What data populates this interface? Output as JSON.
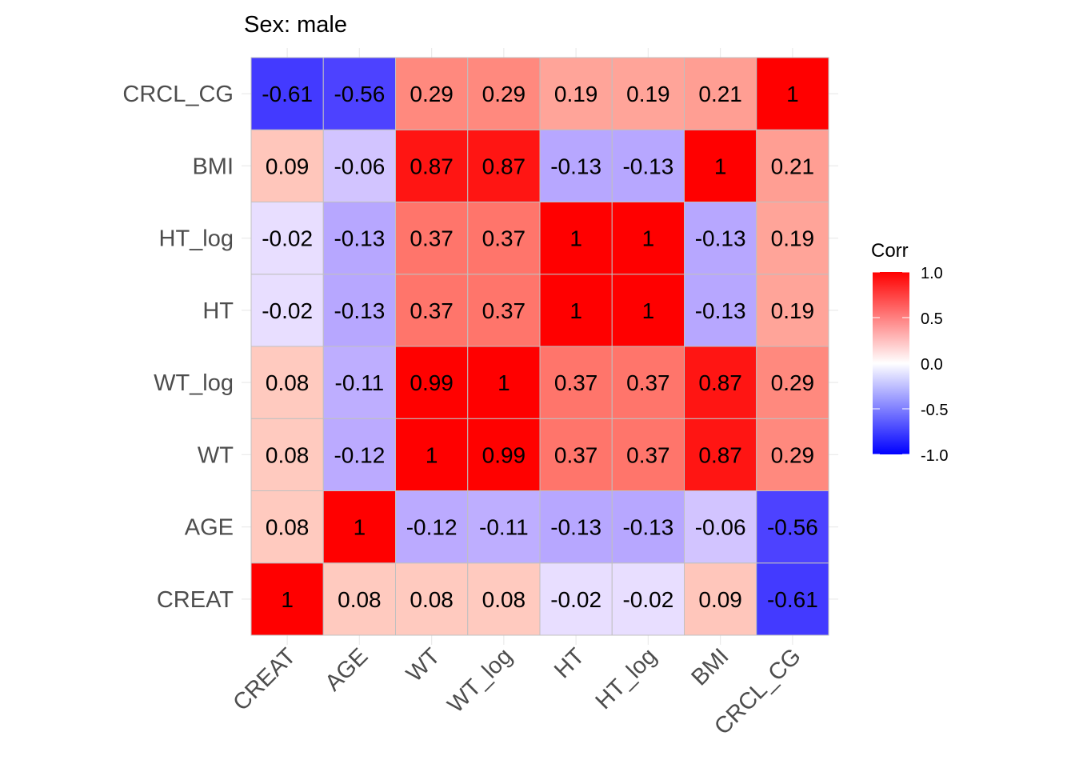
{
  "chart_data": {
    "type": "heatmap",
    "title": "Sex: male",
    "xlabel": "",
    "ylabel": "",
    "variables": [
      "CREAT",
      "AGE",
      "WT",
      "WT_log",
      "HT",
      "HT_log",
      "BMI",
      "CRCL_CG"
    ],
    "x_tick_labels": [
      "CREAT",
      "AGE",
      "WT",
      "WT_log",
      "HT",
      "HT_log",
      "BMI",
      "CRCL_CG"
    ],
    "y_tick_labels_bottom_to_top": [
      "CREAT",
      "AGE",
      "WT",
      "WT_log",
      "HT",
      "HT_log",
      "BMI",
      "CRCL_CG"
    ],
    "matrix": [
      [
        1,
        0.08,
        0.08,
        0.08,
        -0.02,
        -0.02,
        0.09,
        -0.61
      ],
      [
        0.08,
        1,
        -0.12,
        -0.11,
        -0.13,
        -0.13,
        -0.06,
        -0.56
      ],
      [
        0.08,
        -0.12,
        1,
        0.99,
        0.37,
        0.37,
        0.87,
        0.29
      ],
      [
        0.08,
        -0.11,
        0.99,
        1,
        0.37,
        0.37,
        0.87,
        0.29
      ],
      [
        -0.02,
        -0.13,
        0.37,
        0.37,
        1,
        1,
        -0.13,
        0.19
      ],
      [
        -0.02,
        -0.13,
        0.37,
        0.37,
        1,
        1,
        -0.13,
        0.19
      ],
      [
        0.09,
        -0.06,
        0.87,
        0.87,
        -0.13,
        -0.13,
        1,
        0.21
      ],
      [
        -0.61,
        -0.56,
        0.29,
        0.29,
        0.19,
        0.19,
        0.21,
        1
      ]
    ],
    "legend": {
      "title": "Corr",
      "position": "right",
      "range": [
        -1.0,
        1.0
      ],
      "ticks": [
        1.0,
        0.5,
        0.0,
        -0.5,
        -1.0
      ],
      "tick_labels": [
        "1.0",
        "0.5",
        "0.0",
        "-0.5",
        "-1.0"
      ],
      "colors": {
        "low": "#0000ff",
        "mid": "#ffffff",
        "high": "#ff0000"
      }
    },
    "grid": true
  }
}
